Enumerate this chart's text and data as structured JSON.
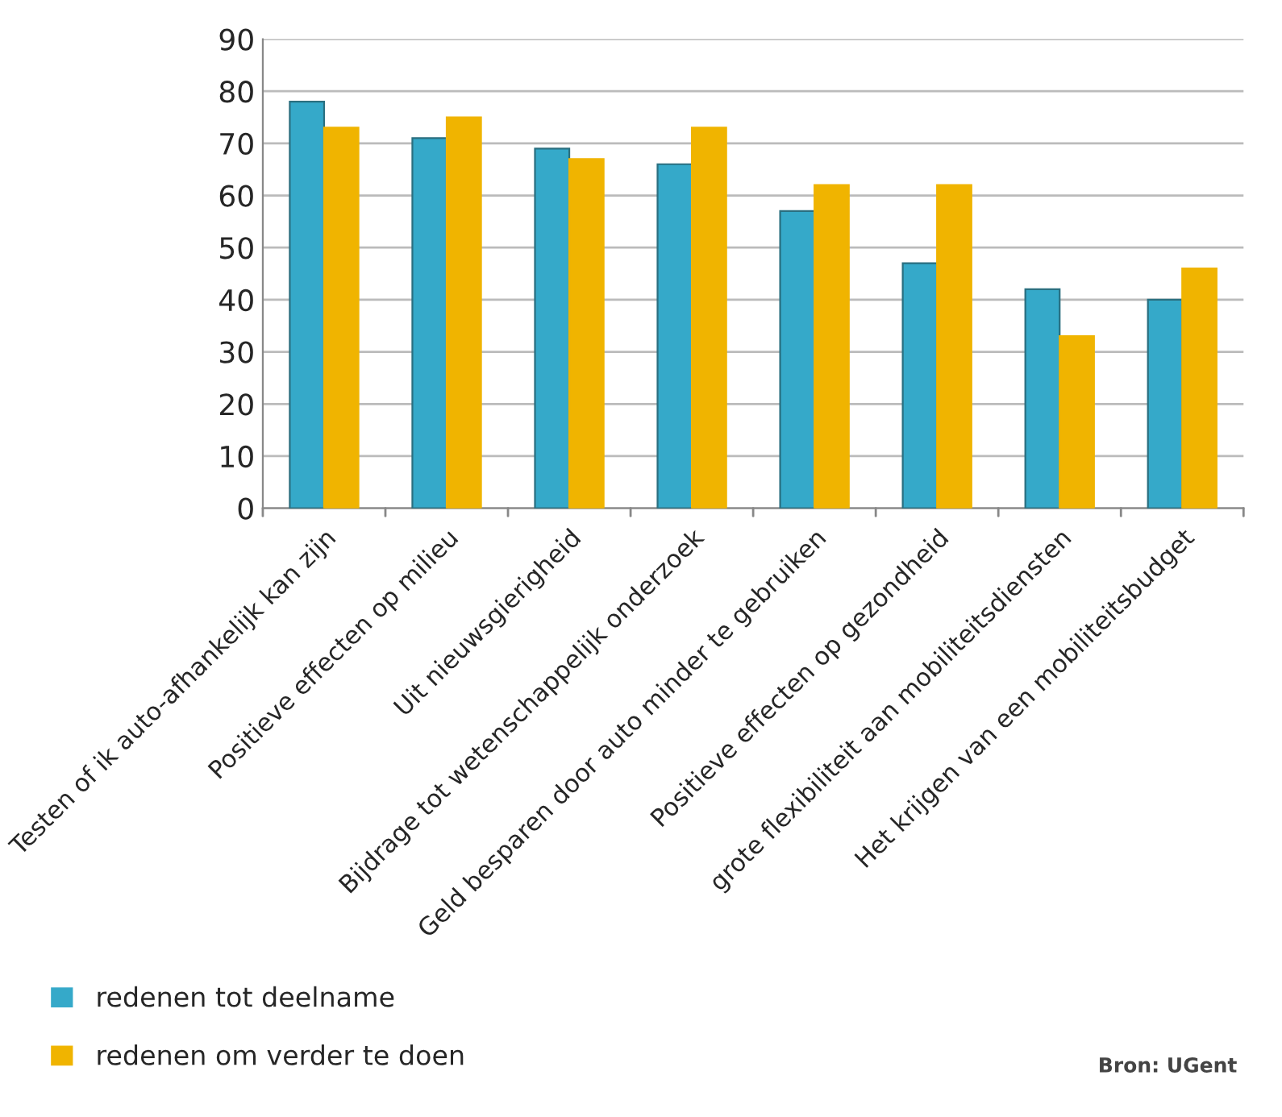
{
  "chart_data": {
    "type": "bar",
    "categories": [
      "Testen of ik auto-afhankelijk kan zijn",
      "Positieve effecten op milieu",
      "Uit nieuwsgierigheid",
      "Bijdrage tot wetenschappelijk onderzoek",
      "Geld besparen door auto minder te gebruiken",
      "Positieve effecten op gezondheid",
      "grote flexibiliteit aan mobiliteitsdiensten",
      "Het krijgen van een mobiliteitsbudget"
    ],
    "series": [
      {
        "name": "redenen tot deelname",
        "color": "#35a9c9",
        "values": [
          78,
          71,
          69,
          66,
          57,
          47,
          42,
          40
        ]
      },
      {
        "name": "redenen om verder te doen",
        "color": "#f0b400",
        "values": [
          73,
          75,
          67,
          73,
          62,
          62,
          33,
          46
        ]
      }
    ],
    "ylim": [
      0,
      90
    ],
    "yticks": [
      0,
      10,
      20,
      30,
      40,
      50,
      60,
      70,
      80,
      90
    ],
    "grid": "y",
    "legend": "bottom left",
    "annotations": [
      "Bron: UGent"
    ]
  }
}
